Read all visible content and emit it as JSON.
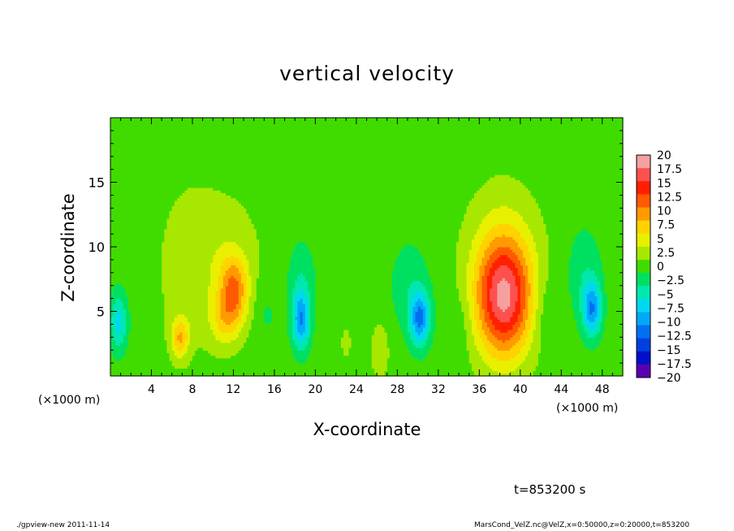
{
  "chart_data": {
    "type": "heatmap",
    "title": "vertical velocity",
    "xlabel": "X-coordinate",
    "ylabel": "Z-coordinate",
    "x_unit_label": "(×1000 m)",
    "x_tick_labels": [
      "4",
      "8",
      "12",
      "16",
      "20",
      "24",
      "28",
      "32",
      "36",
      "40",
      "44",
      "48"
    ],
    "x_ticks": [
      4,
      8,
      12,
      16,
      20,
      24,
      28,
      32,
      36,
      40,
      44,
      48
    ],
    "y_tick_labels": [
      "5",
      "10",
      "15"
    ],
    "y_ticks": [
      5,
      10,
      15
    ],
    "xlim": [
      0,
      50
    ],
    "ylim": [
      0,
      20
    ],
    "colorbar": {
      "levels": [
        20,
        17.5,
        15,
        12.5,
        10,
        7.5,
        5,
        2.5,
        0,
        -2.5,
        -5,
        -7.5,
        -10,
        -12.5,
        -15,
        -17.5,
        -20
      ],
      "labels": [
        "20",
        "17.5",
        "15",
        "12.5",
        "10",
        "7.5",
        "5",
        "2.5",
        "0",
        "−2.5",
        "−5",
        "−7.5",
        "−10",
        "−12.5",
        "−15",
        "−17.5",
        "−20"
      ],
      "colors": [
        "#f4a0a0",
        "#ff5050",
        "#ff2000",
        "#ff5a00",
        "#ff9a00",
        "#ffd200",
        "#e8f000",
        "#a8e800",
        "#40dc00",
        "#00e060",
        "#00e8b0",
        "#00d8f0",
        "#00a8f8",
        "#0070f0",
        "#0040e0",
        "#0010c8",
        "#5a00b0"
      ]
    },
    "features": [
      {
        "x": 38.4,
        "z": 6.0,
        "value": 15.5,
        "sx": 1.9,
        "sz": 3.2
      },
      {
        "x": 38.3,
        "z": 8.6,
        "value": 4.0,
        "sx": 2.6,
        "sz": 4.2
      },
      {
        "x": 12.0,
        "z": 6.6,
        "value": 9.8,
        "sx": 1.0,
        "sz": 1.9
      },
      {
        "x": 11.0,
        "z": 4.2,
        "value": 4.0,
        "sx": 1.0,
        "sz": 1.4
      },
      {
        "x": 10.8,
        "z": 9.0,
        "value": 2.5,
        "sx": 3.0,
        "sz": 4.0
      },
      {
        "x": 6.8,
        "z": 3.0,
        "value": 7.5,
        "sx": 0.6,
        "sz": 1.1
      },
      {
        "x": 7.2,
        "z": 8.0,
        "value": 1.5,
        "sx": 2.0,
        "sz": 5.0
      },
      {
        "x": 18.6,
        "z": 4.3,
        "value": -9.5,
        "sx": 0.6,
        "sz": 1.6
      },
      {
        "x": 18.6,
        "z": 7.2,
        "value": -3.0,
        "sx": 1.0,
        "sz": 2.4
      },
      {
        "x": 30.2,
        "z": 4.5,
        "value": -10.5,
        "sx": 0.7,
        "sz": 1.5
      },
      {
        "x": 29.2,
        "z": 7.0,
        "value": -2.5,
        "sx": 1.4,
        "sz": 2.6
      },
      {
        "x": 47.0,
        "z": 5.2,
        "value": -9.8,
        "sx": 0.65,
        "sz": 1.5
      },
      {
        "x": 46.2,
        "z": 8.0,
        "value": -2.8,
        "sx": 1.2,
        "sz": 2.6
      },
      {
        "x": 0.8,
        "z": 4.2,
        "value": -6.8,
        "sx": 0.6,
        "sz": 1.6
      },
      {
        "x": 26.3,
        "z": 2.0,
        "value": 3.5,
        "sx": 0.6,
        "sz": 1.4
      },
      {
        "x": 23.0,
        "z": 2.6,
        "value": 1.5,
        "sx": 0.6,
        "sz": 1.4
      },
      {
        "x": 42.5,
        "z": 5.0,
        "value": -2.0,
        "sx": 1.0,
        "sz": 2.0
      },
      {
        "x": 15.2,
        "z": 5.0,
        "value": -1.8,
        "sx": 0.9,
        "sz": 2.0
      },
      {
        "x": 34.0,
        "z": 4.0,
        "value": -1.5,
        "sx": 0.9,
        "sz": 2.0
      }
    ]
  },
  "time_label": "t=853200 s",
  "footer": {
    "left": "./gpview-new  2011-11-14",
    "right": "MarsCond_VelZ.nc@VelZ,x=0:50000,z=0:20000,t=853200"
  }
}
